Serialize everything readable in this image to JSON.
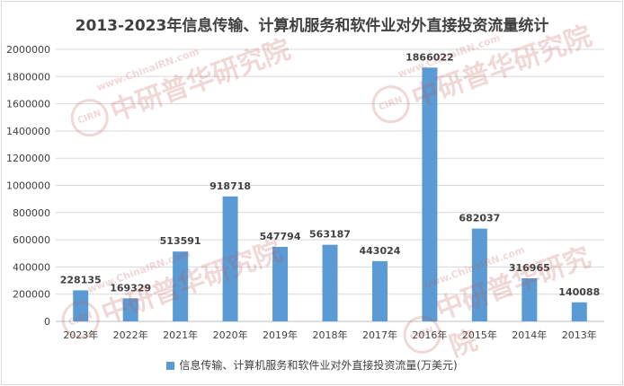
{
  "chart_data": {
    "type": "bar",
    "title": "2013-2023年信息传输、计算机服务和软件业对外直接投资流量统计",
    "categories": [
      "2023年",
      "2022年",
      "2021年",
      "2020年",
      "2019年",
      "2018年",
      "2017年",
      "2016年",
      "2015年",
      "2014年",
      "2013年"
    ],
    "series": [
      {
        "name": "信息传输、计算机服务和软件业对外直接投资流量(万美元)",
        "values": [
          228135,
          169329,
          513591,
          918718,
          547794,
          563187,
          443024,
          1866022,
          682037,
          316965,
          140088
        ],
        "color": "#5b9bd5"
      }
    ],
    "data_labels": [
      "228135",
      "169329",
      "513591",
      "918718",
      "547794",
      "563187",
      "443024",
      "1866022",
      "682037",
      "316965",
      "140088"
    ],
    "ylim": [
      0,
      2000000
    ],
    "y_ticks": [
      "0",
      "200000",
      "400000",
      "600000",
      "800000",
      "1000000",
      "1200000",
      "1400000",
      "1600000",
      "1800000",
      "2000000"
    ],
    "grid": true,
    "legend_position": "bottom"
  },
  "watermark": {
    "text": "中研普华研究院",
    "url": "www.ChinaIRN.com",
    "badge": "CIRN"
  }
}
